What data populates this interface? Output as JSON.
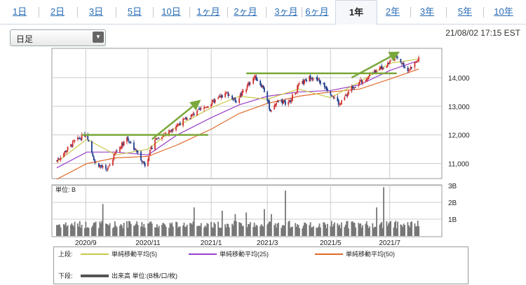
{
  "tabs": [
    {
      "label": "1日",
      "active": false
    },
    {
      "label": "2日",
      "active": false
    },
    {
      "label": "3日",
      "active": false
    },
    {
      "label": "5日",
      "active": false
    },
    {
      "label": "10日",
      "active": false
    },
    {
      "label": "1ヶ月",
      "active": false
    },
    {
      "label": "2ヶ月",
      "active": false
    },
    {
      "label": "3ヶ月",
      "active": false
    },
    {
      "label": "6ヶ月",
      "active": false
    },
    {
      "label": "1年",
      "active": true
    },
    {
      "label": "2年",
      "active": false
    },
    {
      "label": "3年",
      "active": false
    },
    {
      "label": "5年",
      "active": false
    },
    {
      "label": "10年",
      "active": false
    }
  ],
  "interval_select": {
    "value": "日足"
  },
  "timestamp": "21/08/02 17:15 EST",
  "legend": {
    "upper_label": "上段:",
    "lower_label": "下段:",
    "ma5": "単純移動平均(5)",
    "ma25": "単純移動平均(25)",
    "ma50": "単純移動平均(50)",
    "volume": "出来高 単位:(B株/口/枚)"
  },
  "colors": {
    "ma5": "#c9c94a",
    "ma25": "#9a3fc8",
    "ma50": "#e06a2a",
    "up": "#d23030",
    "down": "#1f3d8a",
    "trend": "#7aa83a",
    "volume": "#777777"
  },
  "chart_data": [
    {
      "type": "candlestick",
      "title": "",
      "x_tick_labels": [
        "2020/9",
        "2020/11",
        "2021/1",
        "2021/3",
        "2021/5",
        "2021/7"
      ],
      "y_tick_labels": [
        "11,000",
        "12,000",
        "13,000",
        "14,000"
      ],
      "ylim": [
        10500,
        15000
      ],
      "grid": true,
      "close_path": {
        "dates": [
          "2020-08-03",
          "2020-08-20",
          "2020-09-02",
          "2020-09-10",
          "2020-09-22",
          "2020-10-01",
          "2020-10-12",
          "2020-10-23",
          "2020-10-30",
          "2020-11-09",
          "2020-11-20",
          "2020-12-01",
          "2020-12-14",
          "2020-12-28",
          "2021-01-08",
          "2021-01-20",
          "2021-01-29",
          "2021-02-08",
          "2021-02-16",
          "2021-02-25",
          "2021-03-04",
          "2021-03-12",
          "2021-03-22",
          "2021-04-01",
          "2021-04-14",
          "2021-04-26",
          "2021-05-04",
          "2021-05-12",
          "2021-05-24",
          "2021-06-04",
          "2021-06-15",
          "2021-06-28",
          "2021-07-08",
          "2021-07-19",
          "2021-07-30"
        ],
        "values": [
          11100,
          11750,
          12050,
          11050,
          10750,
          11400,
          11900,
          11350,
          10950,
          11850,
          12050,
          12350,
          12650,
          12950,
          13200,
          13450,
          13200,
          13650,
          14050,
          13650,
          12850,
          13200,
          13100,
          13700,
          14050,
          13750,
          13450,
          13050,
          13650,
          13900,
          14200,
          14450,
          14750,
          14250,
          14650
        ]
      },
      "ma5": {
        "dates": [
          "2020-08-03",
          "2020-09-02",
          "2020-10-01",
          "2020-11-02",
          "2020-12-01",
          "2021-01-04",
          "2021-02-01",
          "2021-03-01",
          "2021-04-01",
          "2021-05-03",
          "2021-06-01",
          "2021-07-01",
          "2021-07-30"
        ],
        "values": [
          11050,
          11850,
          11300,
          11500,
          12300,
          12950,
          13350,
          13250,
          13600,
          13300,
          13850,
          14500,
          14650
        ]
      },
      "ma25": {
        "dates": [
          "2020-08-03",
          "2020-09-02",
          "2020-10-01",
          "2020-11-02",
          "2020-12-01",
          "2021-01-04",
          "2021-02-01",
          "2021-03-01",
          "2021-04-01",
          "2021-05-03",
          "2021-06-01",
          "2021-07-01",
          "2021-07-30"
        ],
        "values": [
          10850,
          11400,
          11400,
          11300,
          12000,
          12600,
          13050,
          13350,
          13500,
          13550,
          13750,
          14250,
          14600
        ]
      },
      "ma50": {
        "dates": [
          "2020-08-03",
          "2020-09-02",
          "2020-10-01",
          "2020-11-02",
          "2020-12-01",
          "2021-01-04",
          "2021-02-01",
          "2021-03-01",
          "2021-04-01",
          "2021-05-03",
          "2021-06-01",
          "2021-07-01",
          "2021-07-30"
        ],
        "values": [
          10450,
          11000,
          11200,
          11250,
          11650,
          12200,
          12750,
          13100,
          13350,
          13500,
          13600,
          13950,
          14300
        ]
      },
      "trend_lines": [
        {
          "kind": "horizontal",
          "from": "2020-08-28",
          "to": "2021-01-01",
          "value": 12000
        },
        {
          "kind": "arrow",
          "from": "2020-11-06",
          "from_value": 11850,
          "to": "2020-12-22",
          "to_value": 13150
        },
        {
          "kind": "horizontal",
          "from": "2021-02-08",
          "to": "2021-07-08",
          "value": 14150
        },
        {
          "kind": "arrow",
          "from": "2021-05-24",
          "from_value": 14000,
          "to": "2021-07-08",
          "to_value": 14850
        }
      ]
    },
    {
      "type": "bar",
      "title": "",
      "unit_label": "単位: B",
      "y_tick_labels": [
        "1B",
        "2B",
        "3B"
      ],
      "ylim": [
        0,
        3
      ],
      "grid": true,
      "baseline_volume": 0.65,
      "spikes": [
        {
          "date": "2020-09-18",
          "value": 1.9
        },
        {
          "date": "2020-12-18",
          "value": 1.7
        },
        {
          "date": "2021-01-15",
          "value": 1.5
        },
        {
          "date": "2021-01-28",
          "value": 1.3
        },
        {
          "date": "2021-02-08",
          "value": 1.4
        },
        {
          "date": "2021-02-26",
          "value": 1.6
        },
        {
          "date": "2021-03-05",
          "value": 1.3
        },
        {
          "date": "2021-03-19",
          "value": 2.7
        },
        {
          "date": "2021-06-18",
          "value": 1.7
        },
        {
          "date": "2021-06-25",
          "value": 2.9
        }
      ]
    }
  ]
}
